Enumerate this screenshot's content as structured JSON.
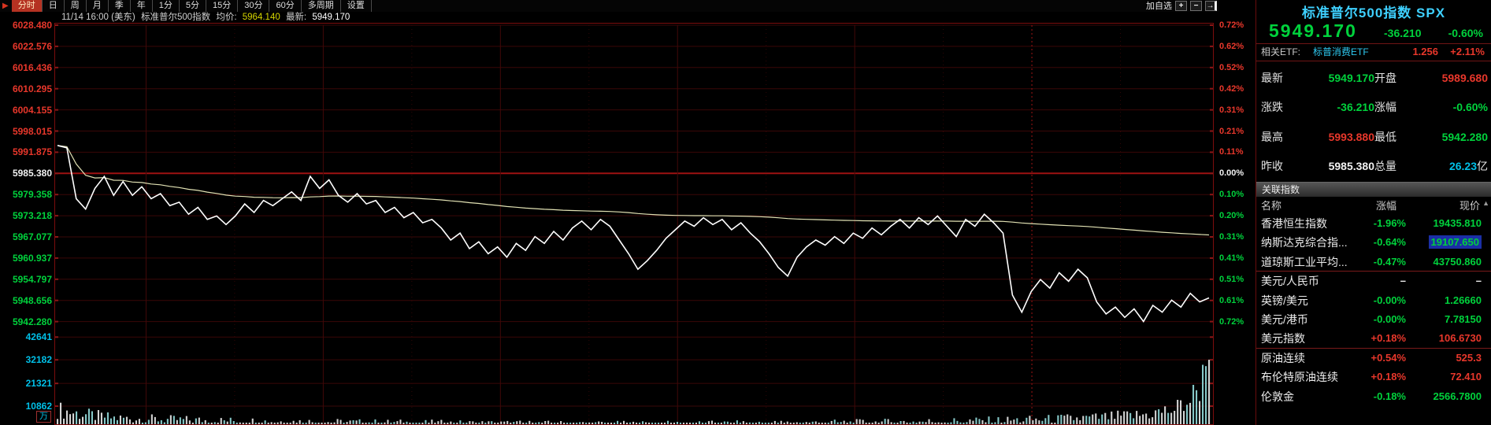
{
  "colors": {
    "up": "#e8372b",
    "down": "#00d23c",
    "flat": "#f2f2f2",
    "cyan": "#00c0e8",
    "title_accent": "#3ed0ff",
    "price_line": "#ffffff",
    "avg_line": "#e2e2b4",
    "grid": "#3a0707",
    "grid_bright": "#9e1212",
    "border": "#7c0d0d",
    "highlight": "#1b2fa6"
  },
  "toolbar": {
    "arrow_icon": "▶",
    "tabs": [
      {
        "label": "分时",
        "active": true
      },
      {
        "label": "日"
      },
      {
        "label": "周"
      },
      {
        "label": "月"
      },
      {
        "label": "季"
      },
      {
        "label": "年"
      },
      {
        "label": "1分"
      },
      {
        "label": "5分"
      },
      {
        "label": "15分"
      },
      {
        "label": "30分"
      },
      {
        "label": "60分"
      },
      {
        "label": "多周期"
      },
      {
        "label": "设置"
      }
    ],
    "add_watch": "加自选",
    "zoom_in": "+",
    "zoom_out": "−",
    "jump_latest": "→"
  },
  "info_bar": {
    "time": "11/14 16:00 (美东)",
    "name": "标准普尔500指数",
    "avg_label": "均价:",
    "avg_value": "5964.140",
    "last_label": "最新:",
    "last_value": "5949.170"
  },
  "chart_data": {
    "type": "line",
    "x_axis": "time 09:30-16:00 (US/Eastern)",
    "prev_close": 5985.38,
    "ylim": [
      5942.28,
      6028.48
    ],
    "percent_lim": [
      -0.72,
      0.72
    ],
    "grid": true,
    "price_axis": [
      {
        "label": "6028.480",
        "tone": "up"
      },
      {
        "label": "6022.576",
        "tone": "up"
      },
      {
        "label": "6016.436",
        "tone": "up"
      },
      {
        "label": "6010.295",
        "tone": "up"
      },
      {
        "label": "6004.155",
        "tone": "up"
      },
      {
        "label": "5998.015",
        "tone": "up"
      },
      {
        "label": "5991.875",
        "tone": "up"
      },
      {
        "label": "5985.380",
        "tone": "flat"
      },
      {
        "label": "5979.358",
        "tone": "down"
      },
      {
        "label": "5973.218",
        "tone": "down"
      },
      {
        "label": "5967.077",
        "tone": "down"
      },
      {
        "label": "5960.937",
        "tone": "down"
      },
      {
        "label": "5954.797",
        "tone": "down"
      },
      {
        "label": "5948.656",
        "tone": "down"
      },
      {
        "label": "5942.280",
        "tone": "down"
      }
    ],
    "percent_axis": [
      {
        "label": "0.72%",
        "tone": "up"
      },
      {
        "label": "0.62%",
        "tone": "up"
      },
      {
        "label": "0.52%",
        "tone": "up"
      },
      {
        "label": "0.42%",
        "tone": "up"
      },
      {
        "label": "0.31%",
        "tone": "up"
      },
      {
        "label": "0.21%",
        "tone": "up"
      },
      {
        "label": "0.11%",
        "tone": "up"
      },
      {
        "label": "0.00%",
        "tone": "flat"
      },
      {
        "label": "0.10%",
        "tone": "down"
      },
      {
        "label": "0.20%",
        "tone": "down"
      },
      {
        "label": "0.31%",
        "tone": "down"
      },
      {
        "label": "0.41%",
        "tone": "down"
      },
      {
        "label": "0.51%",
        "tone": "down"
      },
      {
        "label": "0.61%",
        "tone": "down"
      },
      {
        "label": "0.72%",
        "tone": "down"
      }
    ],
    "volume_axis": [
      "42641",
      "32182",
      "21321",
      "10862"
    ],
    "volume_unit": "万",
    "series": [
      {
        "name": "价格",
        "values": [
          5993.5,
          5992.8,
          5978,
          5975,
          5981,
          5984.5,
          5979,
          5983,
          5979,
          5981.5,
          5978,
          5979.5,
          5976,
          5977,
          5973.5,
          5975.5,
          5972,
          5973,
          5970.5,
          5973,
          5976.5,
          5974,
          5977.5,
          5976,
          5978,
          5980,
          5977.5,
          5984.5,
          5981,
          5983.5,
          5979,
          5977,
          5979.5,
          5976.5,
          5977.5,
          5974,
          5975.5,
          5972.5,
          5974,
          5971,
          5972,
          5969.5,
          5966,
          5968,
          5963.5,
          5965.5,
          5962,
          5964,
          5961,
          5965,
          5963,
          5967,
          5965,
          5968.5,
          5966,
          5969.5,
          5971.5,
          5969,
          5972,
          5970,
          5966,
          5962,
          5957.5,
          5960,
          5963,
          5966.5,
          5969,
          5971.5,
          5970,
          5972.5,
          5970.5,
          5972,
          5969,
          5971,
          5968,
          5965.5,
          5962,
          5958,
          5955.5,
          5961,
          5964,
          5966,
          5964.5,
          5967,
          5965,
          5968,
          5966.5,
          5969.5,
          5967.5,
          5970,
          5972,
          5969.5,
          5972.5,
          5970.5,
          5973,
          5970,
          5967,
          5972,
          5970,
          5973.5,
          5971,
          5968,
          5950,
          5945,
          5951,
          5954.5,
          5952,
          5956.5,
          5954,
          5957.5,
          5955,
          5948,
          5944.5,
          5946.5,
          5943.5,
          5946,
          5942.3,
          5947,
          5945,
          5948.5,
          5946.5,
          5950.5,
          5948,
          5949.17
        ]
      },
      {
        "name": "均价",
        "derived": "cumulative_mean",
        "end_value": 5964.14
      }
    ],
    "volume_profile": [
      [
        0,
        9000
      ],
      [
        0.02,
        7000
      ],
      [
        0.05,
        5200
      ],
      [
        0.1,
        4500
      ],
      [
        0.15,
        4000
      ],
      [
        0.2,
        3700
      ],
      [
        0.25,
        3400
      ],
      [
        0.3,
        3200
      ],
      [
        0.35,
        3000
      ],
      [
        0.4,
        2900
      ],
      [
        0.45,
        2800
      ],
      [
        0.5,
        2750
      ],
      [
        0.55,
        2800
      ],
      [
        0.6,
        2900
      ],
      [
        0.65,
        3100
      ],
      [
        0.7,
        3300
      ],
      [
        0.75,
        3600
      ],
      [
        0.8,
        4000
      ],
      [
        0.85,
        4500
      ],
      [
        0.9,
        5300
      ],
      [
        0.94,
        6500
      ],
      [
        0.97,
        9000
      ],
      [
        0.985,
        14000
      ],
      [
        1,
        28000
      ]
    ]
  },
  "right_panel": {
    "title": "标准普尔500指数 SPX",
    "price": "5949.170",
    "change": "-36.210",
    "change_pct": "-0.60%",
    "trend": "down",
    "etf_row": {
      "label": "相关ETF:",
      "name": "标普消费ETF",
      "value": "1.256",
      "pct": "+2.11%",
      "tone": "up"
    },
    "stats": [
      {
        "label": "最新",
        "value": "5949.170",
        "tone": "down"
      },
      {
        "label": "开盘",
        "value": "5989.680",
        "tone": "up"
      },
      {
        "label": "涨跌",
        "value": "-36.210",
        "tone": "down"
      },
      {
        "label": "涨幅",
        "value": "-0.60%",
        "tone": "down"
      },
      {
        "label": "最高",
        "value": "5993.880",
        "tone": "up"
      },
      {
        "label": "最低",
        "value": "5942.280",
        "tone": "down"
      },
      {
        "label": "昨收",
        "value": "5985.380",
        "tone": "flat"
      },
      {
        "label": "总量",
        "value": "26.23",
        "suffix": "亿",
        "tone": "cyan"
      }
    ],
    "section_header": "关联指数",
    "table": {
      "headers": [
        "名称",
        "涨幅",
        "现价"
      ],
      "rows": [
        {
          "name": "香港恒生指数",
          "pct": "-1.96%",
          "price": "19435.810",
          "tone": "down"
        },
        {
          "name": "纳斯达克综合指...",
          "pct": "-0.64%",
          "price": "19107.650",
          "tone": "down",
          "selected": true
        },
        {
          "name": "道琼斯工业平均...",
          "pct": "-0.47%",
          "price": "43750.860",
          "tone": "down",
          "divider_after": true
        },
        {
          "name": "美元/人民币",
          "pct": "–",
          "price": "–",
          "tone": "flat"
        },
        {
          "name": "英镑/美元",
          "pct": "-0.00%",
          "price": "1.26660",
          "tone": "down"
        },
        {
          "name": "美元/港币",
          "pct": "-0.00%",
          "price": "7.78150",
          "tone": "down"
        },
        {
          "name": "美元指数",
          "pct": "+0.18%",
          "price": "106.6730",
          "tone": "up",
          "divider_after": true
        },
        {
          "name": "原油连续",
          "pct": "+0.54%",
          "price": "525.3",
          "tone": "up"
        },
        {
          "name": "布伦特原油连续",
          "pct": "+0.18%",
          "price": "72.410",
          "tone": "up"
        },
        {
          "name": "伦敦金",
          "pct": "-0.18%",
          "price": "2566.7800",
          "tone": "down"
        }
      ]
    }
  }
}
